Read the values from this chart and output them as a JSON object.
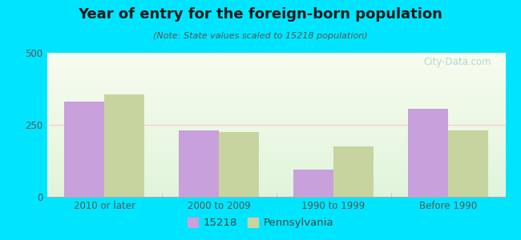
{
  "title": "Year of entry for the foreign-born population",
  "subtitle": "(Note: State values scaled to 15218 population)",
  "categories": [
    "2010 or later",
    "2000 to 2009",
    "1990 to 1999",
    "Before 1990"
  ],
  "values_15218": [
    330,
    230,
    95,
    305
  ],
  "values_pennsylvania": [
    355,
    225,
    175,
    230
  ],
  "color_15218": "#c8a0dc",
  "color_pennsylvania": "#c8d4a0",
  "background_outer": "#00e5ff",
  "ylim": [
    0,
    500
  ],
  "yticks": [
    0,
    250,
    500
  ],
  "bar_width": 0.35,
  "legend_label_15218": "15218",
  "legend_label_pa": "Pennsylvania",
  "watermark": "City-Data.com",
  "grid_line_color": "#ffffff",
  "mid_grid_color": "#ffcccc",
  "grad_top": "#f0f8e8",
  "grad_bottom": "#e8f5e0"
}
